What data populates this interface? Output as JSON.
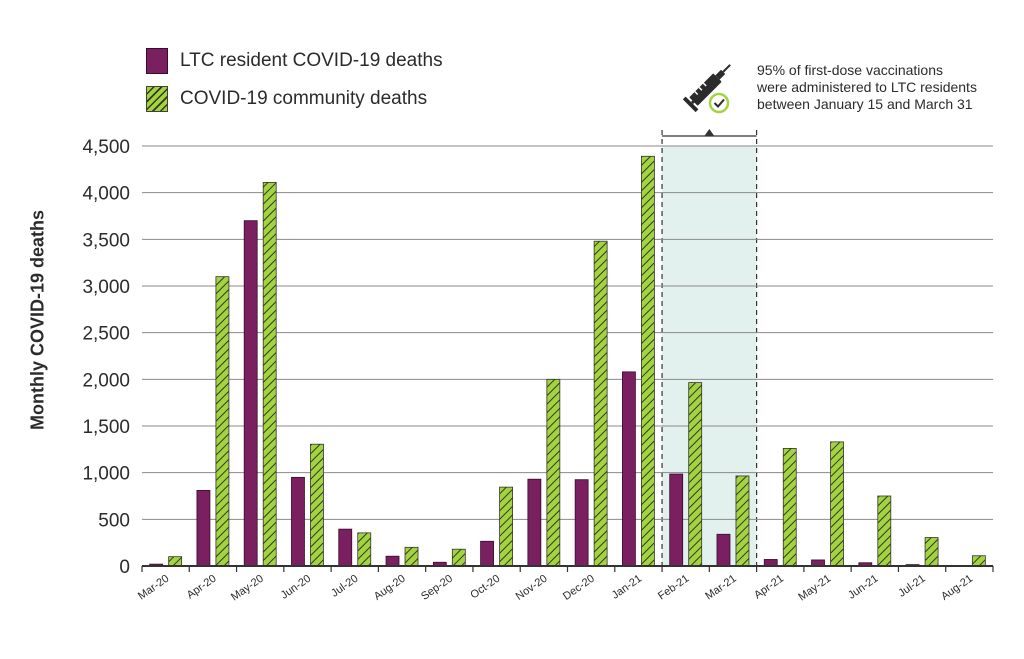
{
  "chart_data": {
    "type": "bar",
    "categories": [
      "Mar-20",
      "Apr-20",
      "May-20",
      "Jun-20",
      "Jul-20",
      "Aug-20",
      "Sep-20",
      "Oct-20",
      "Nov-20",
      "Dec-20",
      "Jan-21",
      "Feb-21",
      "Mar-21",
      "Apr-21",
      "May-21",
      "Jun-21",
      "Jul-21",
      "Aug-21"
    ],
    "series": [
      {
        "name": "LTC resident COVID-19 deaths",
        "color": "#7a1f5f",
        "values": [
          20,
          810,
          3700,
          950,
          395,
          105,
          40,
          265,
          930,
          925,
          2080,
          985,
          340,
          70,
          65,
          35,
          15,
          5
        ]
      },
      {
        "name": "COVID-19 community deaths",
        "color": "#a4d341",
        "values": [
          100,
          3100,
          4110,
          1305,
          355,
          200,
          180,
          845,
          2000,
          3480,
          4390,
          1965,
          965,
          1260,
          1330,
          750,
          305,
          110
        ]
      }
    ],
    "ylabel": "Monthly COVID-19 deaths",
    "ylim": [
      0,
      4500
    ],
    "yticks": [
      "0",
      "500",
      "1,000",
      "1,500",
      "2,000",
      "2,500",
      "3,000",
      "3,500",
      "4,000",
      "4,500"
    ],
    "grid": true,
    "legend": "top-left",
    "highlight": {
      "from": "Feb-21",
      "to": "Mar-21",
      "annotation": [
        "95% of first-dose vaccinations",
        "were administered to LTC residents",
        "between January 15 and March 31"
      ]
    }
  }
}
